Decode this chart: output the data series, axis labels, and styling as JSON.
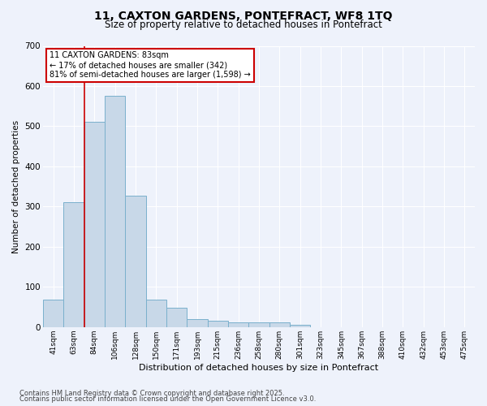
{
  "title_line1": "11, CAXTON GARDENS, PONTEFRACT, WF8 1TQ",
  "title_line2": "Size of property relative to detached houses in Pontefract",
  "xlabel": "Distribution of detached houses by size in Pontefract",
  "ylabel": "Number of detached properties",
  "bar_color": "#c8d8e8",
  "bar_edge_color": "#7ab0cc",
  "vline_color": "#cc0000",
  "vline_x_index": 1,
  "annotation_text": "11 CAXTON GARDENS: 83sqm\n← 17% of detached houses are smaller (342)\n81% of semi-detached houses are larger (1,598) →",
  "annotation_box_color": "#ffffff",
  "annotation_box_edge": "#cc0000",
  "fig_bg_color": "#eef2fb",
  "ax_bg_color": "#eef2fb",
  "grid_color": "#ffffff",
  "categories": [
    "41sqm",
    "63sqm",
    "84sqm",
    "106sqm",
    "128sqm",
    "150sqm",
    "171sqm",
    "193sqm",
    "215sqm",
    "236sqm",
    "258sqm",
    "280sqm",
    "301sqm",
    "323sqm",
    "345sqm",
    "367sqm",
    "388sqm",
    "410sqm",
    "432sqm",
    "453sqm",
    "475sqm"
  ],
  "values": [
    68,
    310,
    510,
    575,
    328,
    68,
    48,
    20,
    15,
    12,
    12,
    12,
    6,
    0,
    0,
    0,
    0,
    0,
    0,
    0,
    0
  ],
  "ylim": [
    0,
    700
  ],
  "yticks": [
    0,
    100,
    200,
    300,
    400,
    500,
    600,
    700
  ],
  "footnote_line1": "Contains HM Land Registry data © Crown copyright and database right 2025.",
  "footnote_line2": "Contains public sector information licensed under the Open Government Licence v3.0."
}
